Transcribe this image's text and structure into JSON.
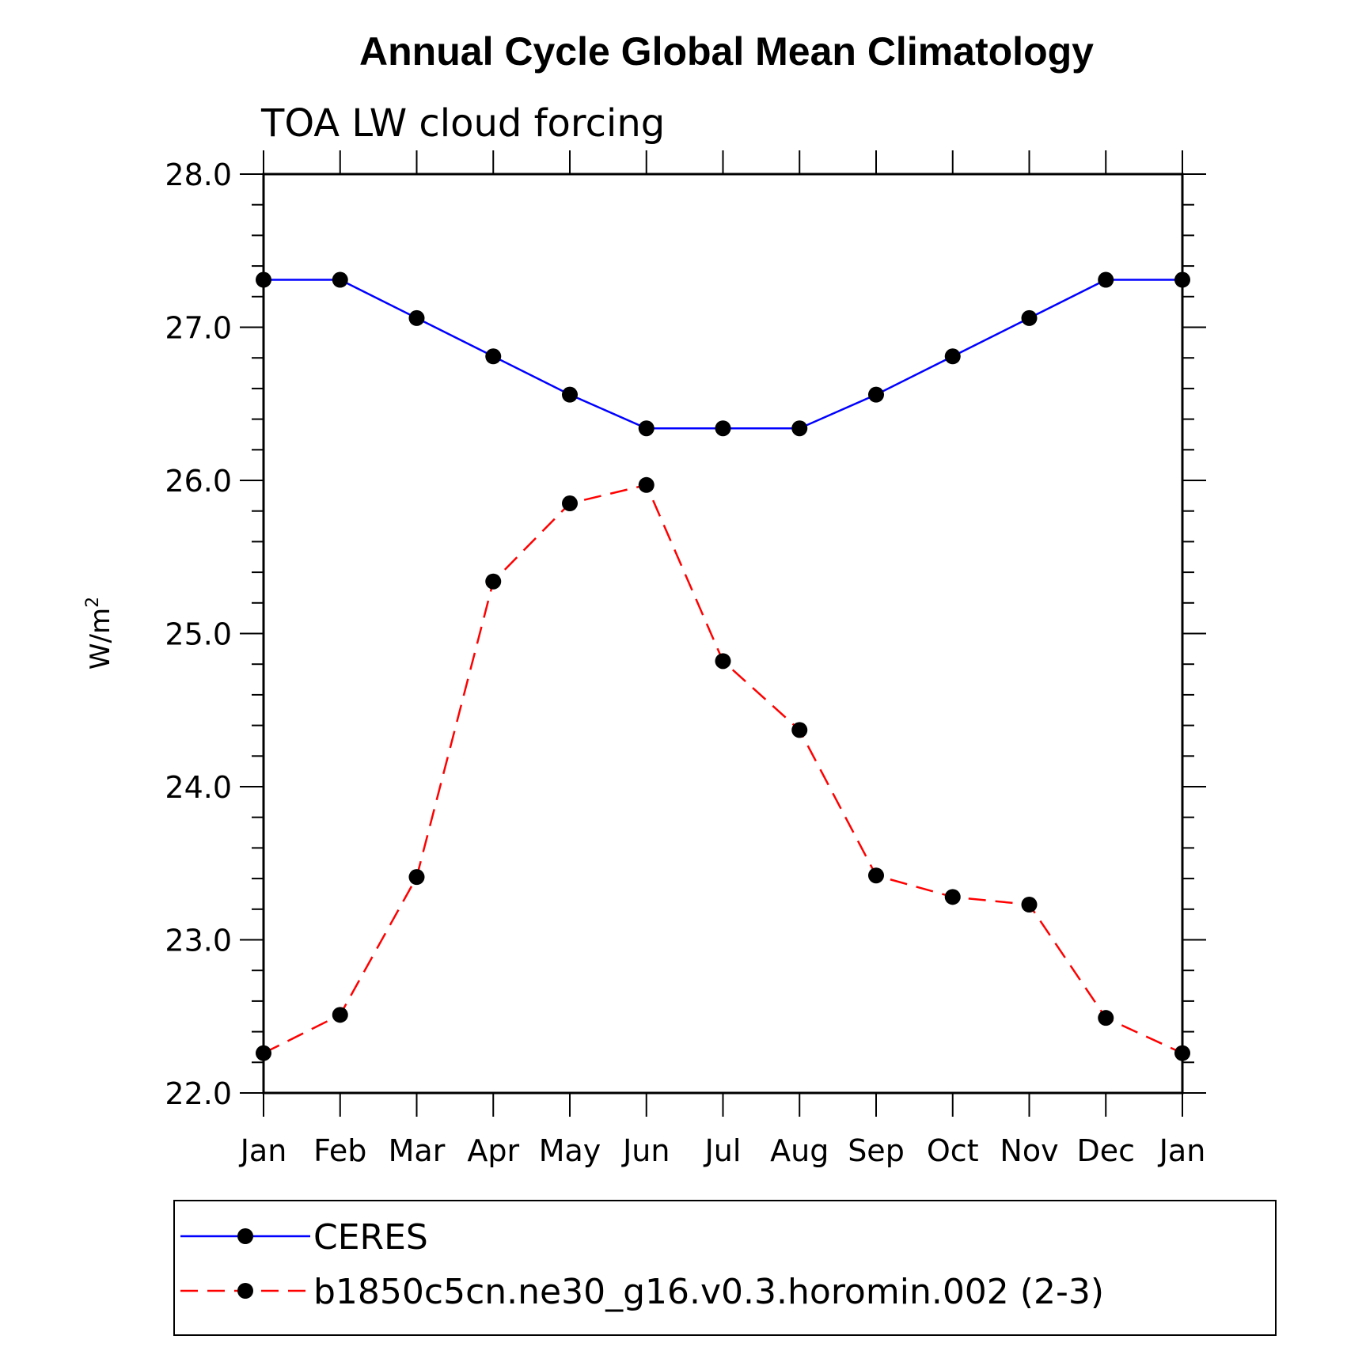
{
  "chart_data": {
    "type": "line",
    "title": "Annual Cycle Global Mean Climatology",
    "subtitle": "TOA LW cloud forcing",
    "ylabel": "W/m",
    "ylabel_superscript": "2",
    "ylim": [
      22.0,
      28.0
    ],
    "yticks": [
      "22.0",
      "23.0",
      "24.0",
      "25.0",
      "26.0",
      "27.0",
      "28.0"
    ],
    "categories": [
      "Jan",
      "Feb",
      "Mar",
      "Apr",
      "May",
      "Jun",
      "Jul",
      "Aug",
      "Sep",
      "Oct",
      "Nov",
      "Dec",
      "Jan"
    ],
    "series": [
      {
        "name": "CERES",
        "color": "#0000ff",
        "dash": "solid",
        "values": [
          27.31,
          27.31,
          27.06,
          26.81,
          26.56,
          26.34,
          26.34,
          26.34,
          26.56,
          26.81,
          27.06,
          27.31,
          27.31
        ]
      },
      {
        "name": "b1850c5cn.ne30_g16.v0.3.horomin.002 (2-3)",
        "color": "#ff0000",
        "dash": "dashed",
        "values": [
          22.26,
          22.51,
          23.41,
          25.34,
          25.85,
          25.97,
          24.82,
          24.37,
          23.42,
          23.28,
          23.23,
          22.49,
          22.26
        ]
      }
    ],
    "legend_placement": "bottom"
  }
}
